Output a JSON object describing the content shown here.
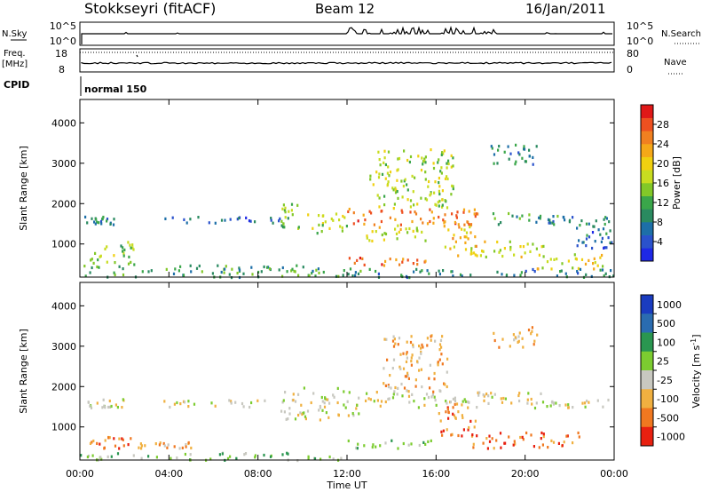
{
  "header": {
    "title": "Stokkseyri (fitACF)",
    "beam": "Beam 12",
    "date": "16/Jan/2011"
  },
  "top_panels": {
    "nsky": {
      "label": "N.Sky",
      "ticks_left": [
        "10^5",
        "10^0"
      ],
      "ticks_right": [
        "10^5",
        "10^0"
      ],
      "right_label": "N.Search"
    },
    "freq": {
      "label_line1": "Freq.",
      "label_line2": "[MHz]",
      "ticks_left": [
        "18",
        "8"
      ],
      "ticks_right": [
        "80",
        "0"
      ],
      "right_label": "Nave"
    },
    "cpid": {
      "label": "CPID",
      "value": "normal 150"
    }
  },
  "chart_data": [
    {
      "type": "heatmap",
      "name": "power",
      "ylabel": "Slant Range [km]",
      "xlabel": "Time UT",
      "x_ticks": [
        "00:00",
        "04:00",
        "08:00",
        "12:00",
        "16:00",
        "20:00",
        "00:00"
      ],
      "xlim_hours": [
        0,
        24
      ],
      "y_ticks": [
        1000,
        2000,
        3000,
        4000
      ],
      "ylim": [
        180,
        4580
      ],
      "colorbar": {
        "label": "Power [dB]",
        "ticks": [
          4,
          8,
          12,
          16,
          20,
          24,
          28
        ],
        "range": [
          0,
          32
        ],
        "colors": [
          "#1e28e6",
          "#2a52cc",
          "#1d6fa8",
          "#2a8a60",
          "#3aa64a",
          "#82c828",
          "#c8dc20",
          "#f0d010",
          "#f5a818",
          "#f08020",
          "#ee5020",
          "#e01818"
        ]
      },
      "regions": [
        {
          "t": [
            0.2,
            1.6
          ],
          "r": [
            1500,
            1720
          ],
          "v": 8
        },
        {
          "t": [
            21.0,
            23.9
          ],
          "r": [
            1500,
            1720
          ],
          "v": 8
        },
        {
          "t": [
            3.5,
            9.2
          ],
          "r": [
            1520,
            1700
          ],
          "v": 6
        },
        {
          "t": [
            9.0,
            9.8
          ],
          "r": [
            1400,
            2050
          ],
          "v": 14
        },
        {
          "t": [
            10.0,
            12.0
          ],
          "r": [
            1300,
            1800
          ],
          "v": 16
        },
        {
          "t": [
            12.0,
            18.0
          ],
          "r": [
            1500,
            1900
          ],
          "v": 26
        },
        {
          "t": [
            12.5,
            15.5
          ],
          "r": [
            1100,
            1500
          ],
          "v": 18
        },
        {
          "t": [
            16.3,
            17.8
          ],
          "r": [
            700,
            1600
          ],
          "v": 22
        },
        {
          "t": [
            12.0,
            15.5
          ],
          "r": [
            500,
            700
          ],
          "v": 27
        },
        {
          "t": [
            18.5,
            21.5
          ],
          "r": [
            1500,
            1800
          ],
          "v": 10
        },
        {
          "t": [
            17.5,
            21.0
          ],
          "r": [
            700,
            1100
          ],
          "v": 18
        },
        {
          "t": [
            20.5,
            23.5
          ],
          "r": [
            400,
            800
          ],
          "v": 20
        },
        {
          "t": [
            0.4,
            2.5
          ],
          "r": [
            500,
            1100
          ],
          "v": 15
        },
        {
          "t": [
            0.0,
            12.0
          ],
          "r": [
            200,
            500
          ],
          "v": 11
        },
        {
          "t": [
            12.0,
            24.0
          ],
          "r": [
            200,
            420
          ],
          "v": 9
        },
        {
          "t": [
            13.0,
            16.8
          ],
          "r": [
            1900,
            3400
          ],
          "v": 16
        },
        {
          "t": [
            18.4,
            20.5
          ],
          "r": [
            2900,
            3500
          ],
          "v": 9
        },
        {
          "t": [
            22.0,
            24.0
          ],
          "r": [
            900,
            1500
          ],
          "v": 7
        }
      ]
    },
    {
      "type": "heatmap",
      "name": "velocity",
      "ylabel": "Slant Range [km]",
      "xlabel": "Time UT",
      "x_ticks": [
        "00:00",
        "04:00",
        "08:00",
        "12:00",
        "16:00",
        "20:00",
        "00:00"
      ],
      "xlim_hours": [
        0,
        24
      ],
      "y_ticks": [
        1000,
        2000,
        3000,
        4000
      ],
      "ylim": [
        180,
        4580
      ],
      "colorbar": {
        "label": "Velocity [m s^-1]",
        "ticks": [
          "1000",
          "500",
          "100",
          "25",
          "-25",
          "-100",
          "-500",
          "-1000"
        ],
        "colors": [
          "#1a3cc0",
          "#2a6cb0",
          "#2a9650",
          "#7ccc30",
          "#c8c8c0",
          "#f0b040",
          "#f07820",
          "#e82010"
        ]
      },
      "regions": [
        {
          "t": [
            0.2,
            2.0
          ],
          "r": [
            1500,
            1720
          ],
          "v": 4
        },
        {
          "t": [
            3.5,
            9.0
          ],
          "r": [
            1520,
            1700
          ],
          "v": 4
        },
        {
          "t": [
            9.0,
            12.5
          ],
          "r": [
            1200,
            2000
          ],
          "v": 4
        },
        {
          "t": [
            12.5,
            21.0
          ],
          "r": [
            1500,
            1900
          ],
          "v": 4
        },
        {
          "t": [
            21.0,
            23.9
          ],
          "r": [
            1500,
            1700
          ],
          "v": 4
        },
        {
          "t": [
            0.0,
            2.5
          ],
          "r": [
            500,
            800
          ],
          "v": 6
        },
        {
          "t": [
            2.5,
            5.0
          ],
          "r": [
            500,
            650
          ],
          "v": 5
        },
        {
          "t": [
            12.0,
            16.0
          ],
          "r": [
            500,
            700
          ],
          "v": 3
        },
        {
          "t": [
            16.0,
            17.8
          ],
          "r": [
            800,
            1600
          ],
          "v": 6
        },
        {
          "t": [
            17.5,
            22.5
          ],
          "r": [
            500,
            900
          ],
          "v": 6
        },
        {
          "t": [
            0.0,
            12.0
          ],
          "r": [
            200,
            400
          ],
          "v": 3
        },
        {
          "t": [
            13.5,
            16.5
          ],
          "r": [
            1900,
            3300
          ],
          "v": 5
        },
        {
          "t": [
            18.5,
            20.5
          ],
          "r": [
            3000,
            3500
          ],
          "v": 5
        }
      ]
    }
  ]
}
